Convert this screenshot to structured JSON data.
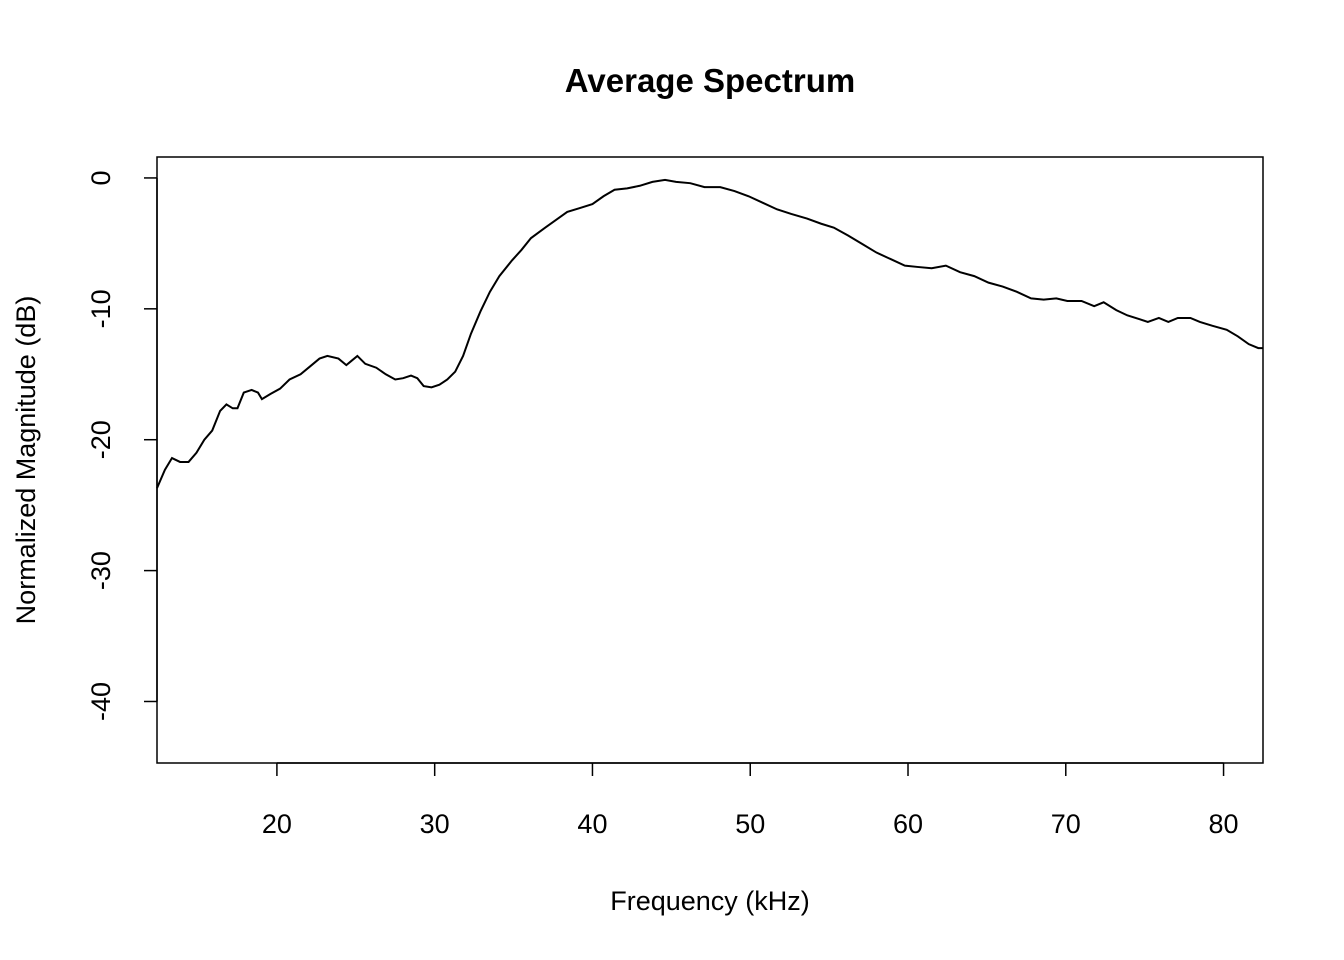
{
  "chart_data": {
    "type": "line",
    "title": "Average Spectrum",
    "x_label": "Frequency (kHz)",
    "y_label": "Normalized Magnitude (dB)",
    "xlim": [
      12.4,
      82.5
    ],
    "ylim": [
      -44.7,
      1.6
    ],
    "xticks": [
      20,
      30,
      40,
      50,
      60,
      70,
      80
    ],
    "yticks": [
      0,
      -10,
      -20,
      -30,
      -40
    ],
    "grid": false,
    "series": [
      {
        "color": "#000000",
        "x": [
          12.4,
          12.9,
          13.35,
          13.86,
          14.4,
          14.9,
          15.4,
          15.9,
          16.4,
          16.8,
          17.2,
          17.5,
          17.9,
          18.4,
          18.8,
          19.05,
          19.6,
          20.2,
          20.8,
          21.5,
          22.1,
          22.7,
          23.2,
          23.9,
          24.4,
          24.7,
          25.1,
          25.6,
          26.3,
          26.9,
          27.5,
          28.0,
          28.5,
          28.9,
          29.3,
          29.8,
          30.3,
          30.8,
          31.3,
          31.8,
          32.3,
          32.9,
          33.5,
          34.1,
          34.9,
          35.5,
          36.1,
          37.0,
          37.7,
          38.4,
          39.2,
          40.0,
          40.7,
          41.4,
          42.2,
          43.0,
          43.8,
          44.6,
          45.3,
          46.2,
          47.1,
          48.1,
          49.0,
          49.9,
          50.8,
          51.7,
          52.6,
          53.6,
          54.5,
          55.3,
          56.2,
          57.1,
          58.0,
          58.9,
          59.8,
          60.6,
          61.5,
          62.4,
          63.3,
          64.2,
          65.1,
          66.0,
          66.9,
          67.8,
          68.6,
          69.4,
          70.1,
          71.0,
          71.8,
          72.4,
          73.2,
          73.9,
          74.7,
          75.2,
          75.9,
          76.5,
          77.1,
          77.9,
          78.5,
          79.3,
          80.2,
          80.9,
          81.6,
          82.2,
          82.5
        ],
        "values": [
          -23.7,
          -22.3,
          -21.4,
          -21.7,
          -21.7,
          -21.0,
          -20.0,
          -19.3,
          -17.8,
          -17.3,
          -17.6,
          -17.6,
          -16.4,
          -16.2,
          -16.4,
          -16.9,
          -16.5,
          -16.1,
          -15.4,
          -15.0,
          -14.4,
          -13.8,
          -13.6,
          -13.8,
          -14.3,
          -14.0,
          -13.6,
          -14.2,
          -14.5,
          -15.0,
          -15.4,
          -15.3,
          -15.1,
          -15.3,
          -15.9,
          -16.0,
          -15.8,
          -15.4,
          -14.8,
          -13.6,
          -11.9,
          -10.2,
          -8.7,
          -7.5,
          -6.3,
          -5.5,
          -4.6,
          -3.8,
          -3.2,
          -2.6,
          -2.3,
          -2.0,
          -1.4,
          -0.9,
          -0.8,
          -0.6,
          -0.3,
          -0.15,
          -0.3,
          -0.4,
          -0.7,
          -0.7,
          -1.0,
          -1.4,
          -1.9,
          -2.4,
          -2.75,
          -3.1,
          -3.5,
          -3.8,
          -4.4,
          -5.05,
          -5.7,
          -6.2,
          -6.7,
          -6.8,
          -6.9,
          -6.7,
          -7.2,
          -7.5,
          -8.0,
          -8.3,
          -8.7,
          -9.2,
          -9.3,
          -9.2,
          -9.4,
          -9.4,
          -9.8,
          -9.5,
          -10.1,
          -10.5,
          -10.8,
          -11.0,
          -10.7,
          -11.0,
          -10.7,
          -10.7,
          -11.0,
          -11.3,
          -11.6,
          -12.1,
          -12.7,
          -13.0,
          -13.0
        ]
      }
    ]
  }
}
